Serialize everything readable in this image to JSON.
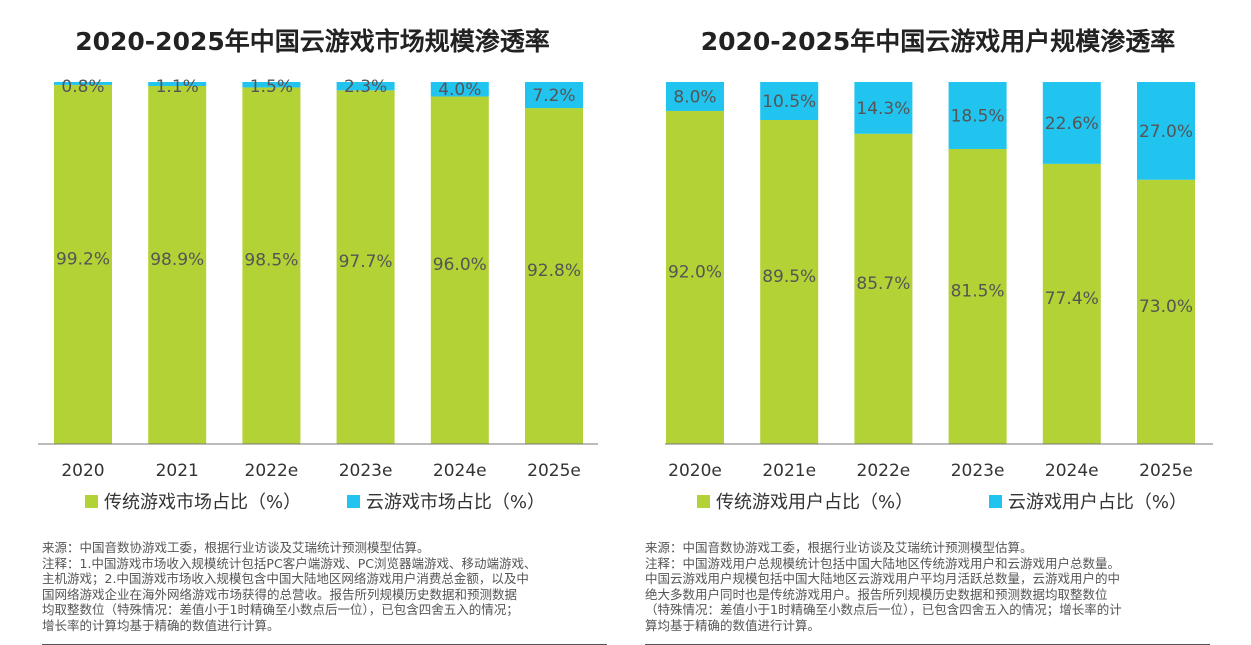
{
  "colors": {
    "traditional": "#b2d235",
    "cloud": "#21c3ef",
    "axis": "#777777",
    "label": "#555555"
  },
  "charts": [
    {
      "title": "2020-2025年中国云游戏市场规模渗透率",
      "legend": [
        "传统游戏市场占比（%）",
        "云游戏市场占比（%）"
      ],
      "notes": [
        "来源：中国音数协游戏工委，根据行业访谈及艾瑞统计预测模型估算。",
        "注释：1.中国游戏市场收入规模统计包括PC客户端游戏、PC浏览器端游戏、移动端游戏、",
        "主机游戏；2.中国游戏市场收入规模包含中国大陆地区网络游戏用户消费总金额，以及中",
        "国网络游戏企业在海外网络游戏市场获得的总营收。报告所列规模历史数据和预测数据",
        "均取整数位（特殊情况：差值小于1时精确至小数点后一位），已包含四舍五入的情况；",
        "增长率的计算均基于精确的数值进行计算。"
      ]
    },
    {
      "title": "2020-2025年中国云游戏用户规模渗透率",
      "legend": [
        "传统游戏用户占比（%）",
        "云游戏用户占比（%）"
      ],
      "notes": [
        "来源：中国音数协游戏工委，根据行业访谈及艾瑞统计预测模型估算。",
        "注释：中国游戏用户总规模统计包括中国大陆地区传统游戏用户和云游戏用户总数量。",
        "中国云游戏用户规模包括中国大陆地区云游戏用户平均月活跃总数量，云游戏用户的中",
        "绝大多数用户同时也是传统游戏用户。报告所列规模历史数据和预测数据均取整数位",
        "（特殊情况：差值小于1时精确至小数点后一位），已包含四舍五入的情况；增长率的计",
        "算均基于精确的数值进行计算。"
      ]
    }
  ],
  "chart_data": [
    {
      "type": "bar",
      "stacked": true,
      "title": "2020-2025年中国云游戏市场规模渗透率",
      "categories": [
        "2020",
        "2021",
        "2022e",
        "2023e",
        "2024e",
        "2025e"
      ],
      "ylim": [
        0,
        100
      ],
      "series": [
        {
          "name": "传统游戏市场占比（%）",
          "values": [
            99.2,
            98.9,
            98.5,
            97.7,
            96.0,
            92.8
          ],
          "labels": [
            "99.2%",
            "98.9%",
            "98.5%",
            "97.7%",
            "96.0%",
            "92.8%"
          ]
        },
        {
          "name": "云游戏市场占比（%）",
          "values": [
            0.8,
            1.1,
            1.5,
            2.3,
            4.0,
            7.2
          ],
          "labels": [
            "0.8%",
            "1.1%",
            "1.5%",
            "2.3%",
            "4.0%",
            "7.2%"
          ]
        }
      ],
      "legend_position": "bottom"
    },
    {
      "type": "bar",
      "stacked": true,
      "title": "2020-2025年中国云游戏用户规模渗透率",
      "categories": [
        "2020e",
        "2021e",
        "2022e",
        "2023e",
        "2024e",
        "2025e"
      ],
      "ylim": [
        0,
        100
      ],
      "series": [
        {
          "name": "传统游戏用户占比（%）",
          "values": [
            92.0,
            89.5,
            85.7,
            81.5,
            77.4,
            73.0
          ],
          "labels": [
            "92.0%",
            "89.5%",
            "85.7%",
            "81.5%",
            "77.4%",
            "73.0%"
          ]
        },
        {
          "name": "云游戏用户占比（%）",
          "values": [
            8.0,
            10.5,
            14.3,
            18.5,
            22.6,
            27.0
          ],
          "labels": [
            "8.0%",
            "10.5%",
            "14.3%",
            "18.5%",
            "22.6%",
            "27.0%"
          ]
        }
      ],
      "legend_position": "bottom"
    }
  ]
}
